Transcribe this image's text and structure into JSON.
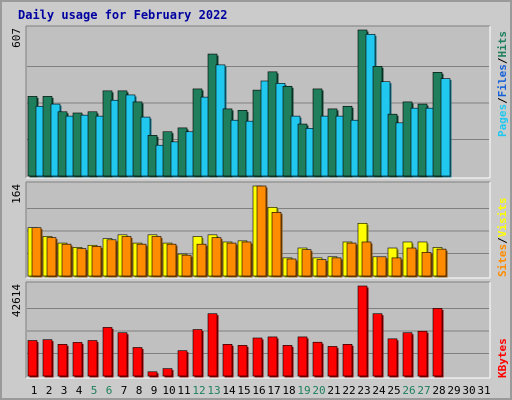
{
  "chart_data": {
    "type": "bar",
    "title": "Daily usage for February 2022",
    "days": [
      "1",
      "2",
      "3",
      "4",
      "5",
      "6",
      "7",
      "8",
      "9",
      "10",
      "11",
      "12",
      "13",
      "14",
      "15",
      "16",
      "17",
      "18",
      "19",
      "20",
      "21",
      "22",
      "23",
      "24",
      "25",
      "26",
      "27",
      "28",
      "29",
      "30",
      "31"
    ],
    "weekend_days": [
      "5",
      "6",
      "12",
      "13",
      "19",
      "20",
      "26",
      "27"
    ],
    "panels": [
      {
        "max_label": "607",
        "ylim": [
          0,
          607
        ],
        "series": [
          {
            "name": "Hits",
            "color": "#1f7f5c",
            "values": [
              331,
              331,
              267,
              262,
              267,
              354,
              354,
              308,
              169,
              184,
              200,
              362,
              507,
              279,
              273,
              357,
              433,
              373,
              216,
              362,
              279,
              290,
              607,
              456,
              257,
              308,
              299,
              431,
              0,
              0,
              0
            ]
          },
          {
            "name": "Files",
            "color": "#1560d8",
            "values": [
              0,
              0,
              0,
              0,
              0,
              0,
              0,
              0,
              0,
              0,
              0,
              0,
              0,
              0,
              0,
              0,
              0,
              0,
              0,
              0,
              0,
              0,
              0,
              0,
              0,
              0,
              0,
              0,
              0,
              0,
              0
            ]
          },
          {
            "name": "Pages",
            "color": "#20c8f0",
            "values": [
              290,
              299,
              249,
              253,
              249,
              315,
              337,
              245,
              128,
              142,
              184,
              328,
              462,
              232,
              228,
              395,
              385,
              249,
              198,
              249,
              249,
              232,
              589,
              392,
              221,
              282,
              282,
              405,
              0,
              0,
              0
            ]
          }
        ]
      },
      {
        "max_label": "164",
        "ylim": [
          0,
          164
        ],
        "series": [
          {
            "name": "Visits",
            "color": "#ffff00",
            "values": [
              88,
              72,
              60,
              52,
              56,
              68,
              75,
              60,
              75,
              60,
              40,
              72,
              75,
              62,
              64,
              164,
              125,
              33,
              51,
              33,
              35,
              62,
              96,
              35,
              51,
              62,
              62,
              52,
              0,
              0,
              0
            ]
          },
          {
            "name": "Sites",
            "color": "#ff8c00",
            "values": [
              88,
              70,
              58,
              50,
              54,
              66,
              72,
              58,
              72,
              58,
              38,
              58,
              70,
              60,
              62,
              164,
              116,
              31,
              48,
              30,
              33,
              60,
              62,
              35,
              33,
              51,
              43,
              49,
              0,
              0,
              0
            ]
          }
        ]
      },
      {
        "max_label": "42614",
        "ylim": [
          0,
          42614
        ],
        "series": [
          {
            "name": "KBytes",
            "color": "#ff0000",
            "values": [
              16800,
              17200,
              15000,
              15900,
              16800,
              23000,
              20500,
              13500,
              2000,
              3500,
              12000,
              22000,
              29500,
              15000,
              14500,
              18000,
              18500,
              14500,
              18500,
              16000,
              14000,
              15000,
              42614,
              29500,
              17600,
              20500,
              21200,
              32000,
              0,
              0,
              0
            ]
          }
        ]
      }
    ],
    "legend_right": {
      "top": [
        "Pages",
        "/",
        "Files",
        "/",
        "Hits"
      ],
      "middle": [
        "Sites",
        "/",
        "Visits"
      ],
      "bottom": [
        "KBytes"
      ]
    }
  }
}
